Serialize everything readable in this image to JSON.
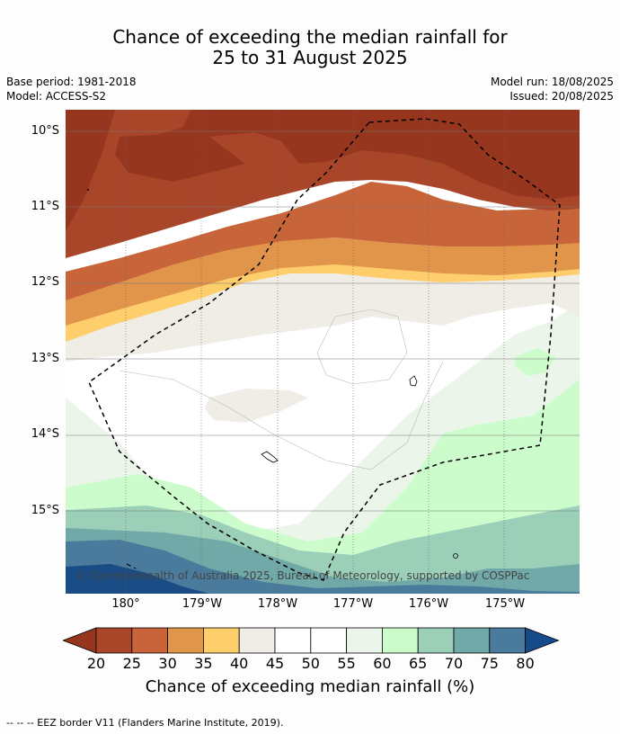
{
  "title": {
    "line1": "Chance of exceeding the median rainfall for",
    "line2": "25 to 31 August 2025"
  },
  "meta": {
    "base_period": "Base period: 1981-2018",
    "model": "Model: ACCESS-S2",
    "model_run": "Model run: 18/08/2025",
    "issued": "Issued: 20/08/2025"
  },
  "map": {
    "lat_labels": [
      "10°S",
      "11°S",
      "12°S",
      "13°S",
      "14°S",
      "15°S"
    ],
    "lon_labels": [
      "180°",
      "179°W",
      "178°W",
      "177°W",
      "176°W",
      "175°W"
    ],
    "copyright": "© Commonwealth of Australia 2025, Bureau of Meteorology, supported by COSPPac"
  },
  "colorbar": {
    "ticks": [
      "20",
      "25",
      "30",
      "35",
      "40",
      "45",
      "50",
      "55",
      "60",
      "65",
      "70",
      "75",
      "80"
    ],
    "colors": [
      "#a9462a",
      "#c8643a",
      "#e0954b",
      "#fece6d",
      "#f0ece6",
      "#ffffff",
      "#ffffff",
      "#ebf5e9",
      "#ccfccc",
      "#9bcfb8",
      "#70a9a8",
      "#4a7b9c",
      "#1a4c85"
    ],
    "low_color": "#96361f",
    "high_color": "#164a88",
    "label": "Chance of exceeding median rainfall (%)"
  },
  "footer": "--  --  -- EEZ border V11 (Flanders Marine Institute, 2019)."
}
